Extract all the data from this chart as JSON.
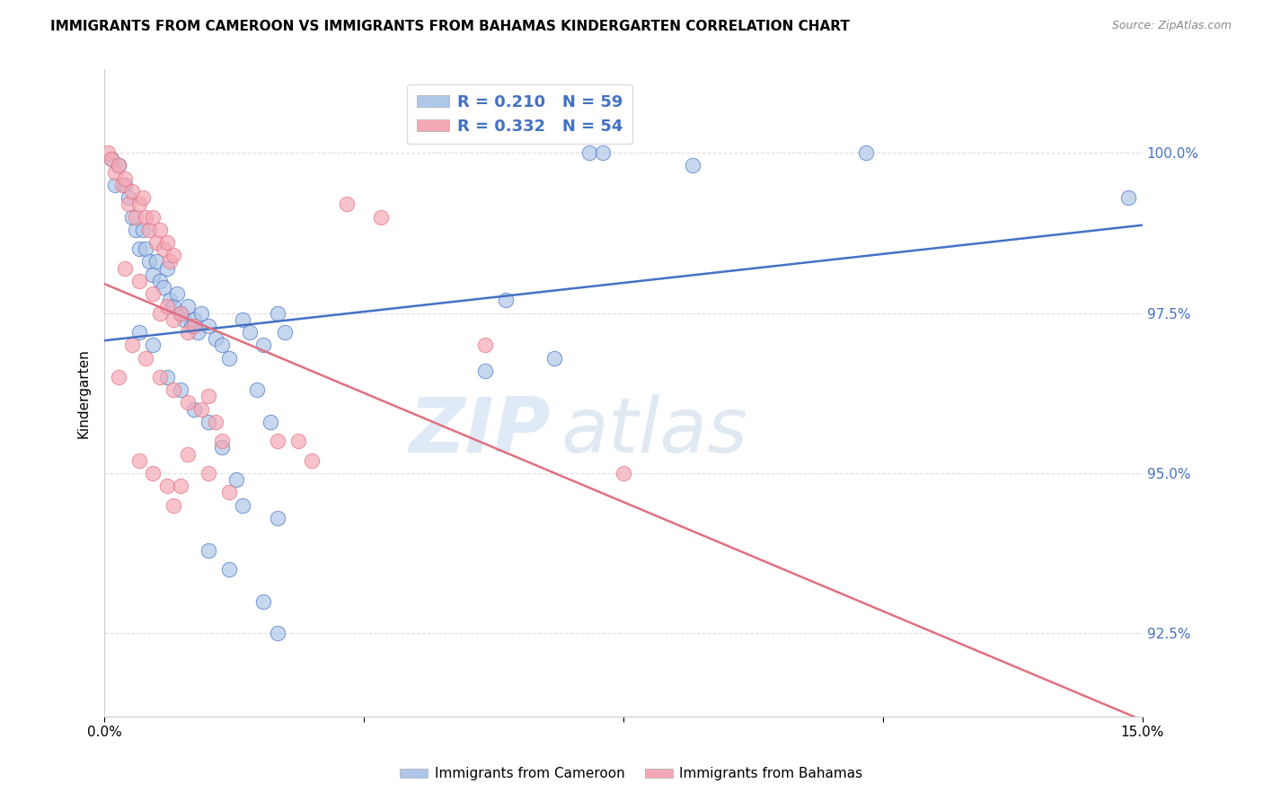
{
  "title": "IMMIGRANTS FROM CAMEROON VS IMMIGRANTS FROM BAHAMAS KINDERGARTEN CORRELATION CHART",
  "source": "Source: ZipAtlas.com",
  "ylabel": "Kindergarten",
  "yticks": [
    92.5,
    95.0,
    97.5,
    100.0
  ],
  "ytick_labels": [
    "92.5%",
    "95.0%",
    "97.5%",
    "100.0%"
  ],
  "xlim": [
    0.0,
    15.0
  ],
  "ylim": [
    91.2,
    101.3
  ],
  "legend1_label": "R = 0.210   N = 59",
  "legend2_label": "R = 0.332   N = 54",
  "cameroon_color": "#aec6e8",
  "bahamas_color": "#f4a8b5",
  "trendline_cameroon_color": "#4472c4",
  "trendline_bahamas_color": "#e07080",
  "cameroon_label": "Immigrants from Cameroon",
  "bahamas_label": "Immigrants from Bahamas",
  "cameroon_scatter": [
    [
      0.1,
      99.9
    ],
    [
      0.2,
      99.8
    ],
    [
      0.15,
      99.5
    ],
    [
      0.3,
      99.5
    ],
    [
      0.35,
      99.3
    ],
    [
      0.4,
      99.0
    ],
    [
      0.45,
      98.8
    ],
    [
      0.5,
      98.5
    ],
    [
      0.55,
      98.8
    ],
    [
      0.6,
      98.5
    ],
    [
      0.65,
      98.3
    ],
    [
      0.7,
      98.1
    ],
    [
      0.75,
      98.3
    ],
    [
      0.8,
      98.0
    ],
    [
      0.85,
      97.9
    ],
    [
      0.9,
      98.2
    ],
    [
      0.95,
      97.7
    ],
    [
      1.0,
      97.6
    ],
    [
      1.05,
      97.8
    ],
    [
      1.1,
      97.5
    ],
    [
      1.15,
      97.4
    ],
    [
      1.2,
      97.6
    ],
    [
      1.25,
      97.3
    ],
    [
      1.3,
      97.4
    ],
    [
      1.35,
      97.2
    ],
    [
      1.4,
      97.5
    ],
    [
      1.5,
      97.3
    ],
    [
      1.6,
      97.1
    ],
    [
      1.7,
      97.0
    ],
    [
      1.8,
      96.8
    ],
    [
      0.5,
      97.2
    ],
    [
      0.7,
      97.0
    ],
    [
      0.9,
      96.5
    ],
    [
      1.1,
      96.3
    ],
    [
      1.3,
      96.0
    ],
    [
      1.5,
      95.8
    ],
    [
      1.7,
      95.4
    ],
    [
      1.9,
      94.9
    ],
    [
      2.0,
      97.4
    ],
    [
      2.1,
      97.2
    ],
    [
      2.3,
      97.0
    ],
    [
      2.5,
      97.5
    ],
    [
      2.6,
      97.2
    ],
    [
      2.2,
      96.3
    ],
    [
      2.4,
      95.8
    ],
    [
      2.0,
      94.5
    ],
    [
      2.5,
      94.3
    ],
    [
      1.5,
      93.8
    ],
    [
      1.8,
      93.5
    ],
    [
      2.3,
      93.0
    ],
    [
      2.5,
      92.5
    ],
    [
      5.5,
      96.6
    ],
    [
      6.5,
      96.8
    ],
    [
      7.0,
      100.0
    ],
    [
      7.2,
      100.0
    ],
    [
      8.5,
      99.8
    ],
    [
      11.0,
      100.0
    ],
    [
      5.8,
      97.7
    ],
    [
      14.8,
      99.3
    ]
  ],
  "bahamas_scatter": [
    [
      0.05,
      100.0
    ],
    [
      0.1,
      99.9
    ],
    [
      0.15,
      99.7
    ],
    [
      0.2,
      99.8
    ],
    [
      0.25,
      99.5
    ],
    [
      0.3,
      99.6
    ],
    [
      0.35,
      99.2
    ],
    [
      0.4,
      99.4
    ],
    [
      0.45,
      99.0
    ],
    [
      0.5,
      99.2
    ],
    [
      0.55,
      99.3
    ],
    [
      0.6,
      99.0
    ],
    [
      0.65,
      98.8
    ],
    [
      0.7,
      99.0
    ],
    [
      0.75,
      98.6
    ],
    [
      0.8,
      98.8
    ],
    [
      0.85,
      98.5
    ],
    [
      0.9,
      98.6
    ],
    [
      0.95,
      98.3
    ],
    [
      1.0,
      98.4
    ],
    [
      0.3,
      98.2
    ],
    [
      0.5,
      98.0
    ],
    [
      0.7,
      97.8
    ],
    [
      0.8,
      97.5
    ],
    [
      0.9,
      97.6
    ],
    [
      1.0,
      97.4
    ],
    [
      1.1,
      97.5
    ],
    [
      1.2,
      97.2
    ],
    [
      1.3,
      97.3
    ],
    [
      0.4,
      97.0
    ],
    [
      0.6,
      96.8
    ],
    [
      0.8,
      96.5
    ],
    [
      1.0,
      96.3
    ],
    [
      1.2,
      96.1
    ],
    [
      1.4,
      96.0
    ],
    [
      1.5,
      96.2
    ],
    [
      1.6,
      95.8
    ],
    [
      1.7,
      95.5
    ],
    [
      0.5,
      95.2
    ],
    [
      0.7,
      95.0
    ],
    [
      0.9,
      94.8
    ],
    [
      1.0,
      94.5
    ],
    [
      1.1,
      94.8
    ],
    [
      1.5,
      95.0
    ],
    [
      1.8,
      94.7
    ],
    [
      2.5,
      95.5
    ],
    [
      3.0,
      95.2
    ],
    [
      3.5,
      99.2
    ],
    [
      4.0,
      99.0
    ],
    [
      5.5,
      97.0
    ],
    [
      7.5,
      95.0
    ],
    [
      1.2,
      95.3
    ],
    [
      2.8,
      95.5
    ],
    [
      0.2,
      96.5
    ]
  ],
  "watermark_zip": "ZIP",
  "watermark_atlas": "atlas",
  "background_color": "#ffffff",
  "grid_color": "#dddddd"
}
